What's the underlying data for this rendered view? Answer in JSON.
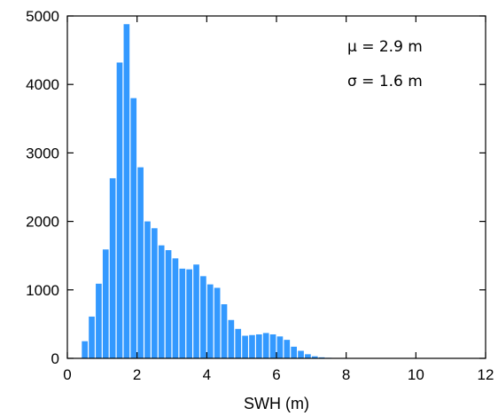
{
  "chart_data": {
    "type": "bar",
    "title": "",
    "xlabel": "SWH (m)",
    "ylabel": "",
    "xlim": [
      0,
      12
    ],
    "ylim": [
      0,
      5000
    ],
    "xticks": [
      0,
      2,
      4,
      6,
      8,
      10,
      12
    ],
    "yticks": [
      0,
      1000,
      2000,
      3000,
      4000,
      5000
    ],
    "bin_width": 0.2,
    "bin_start": 0.4,
    "bar_color": "#3399ff",
    "grid": false,
    "annotations": [
      "μ = 2.9 m",
      "σ = 1.6 m"
    ],
    "values": [
      250,
      610,
      1090,
      1590,
      2630,
      4320,
      4880,
      3800,
      2790,
      2000,
      1900,
      1650,
      1580,
      1460,
      1310,
      1300,
      1370,
      1200,
      1080,
      1030,
      790,
      560,
      430,
      330,
      340,
      350,
      370,
      350,
      320,
      270,
      170,
      110,
      60,
      30,
      15,
      8,
      5,
      4,
      3,
      2,
      2,
      1,
      1,
      1,
      1,
      1,
      1,
      1,
      1,
      1
    ]
  }
}
